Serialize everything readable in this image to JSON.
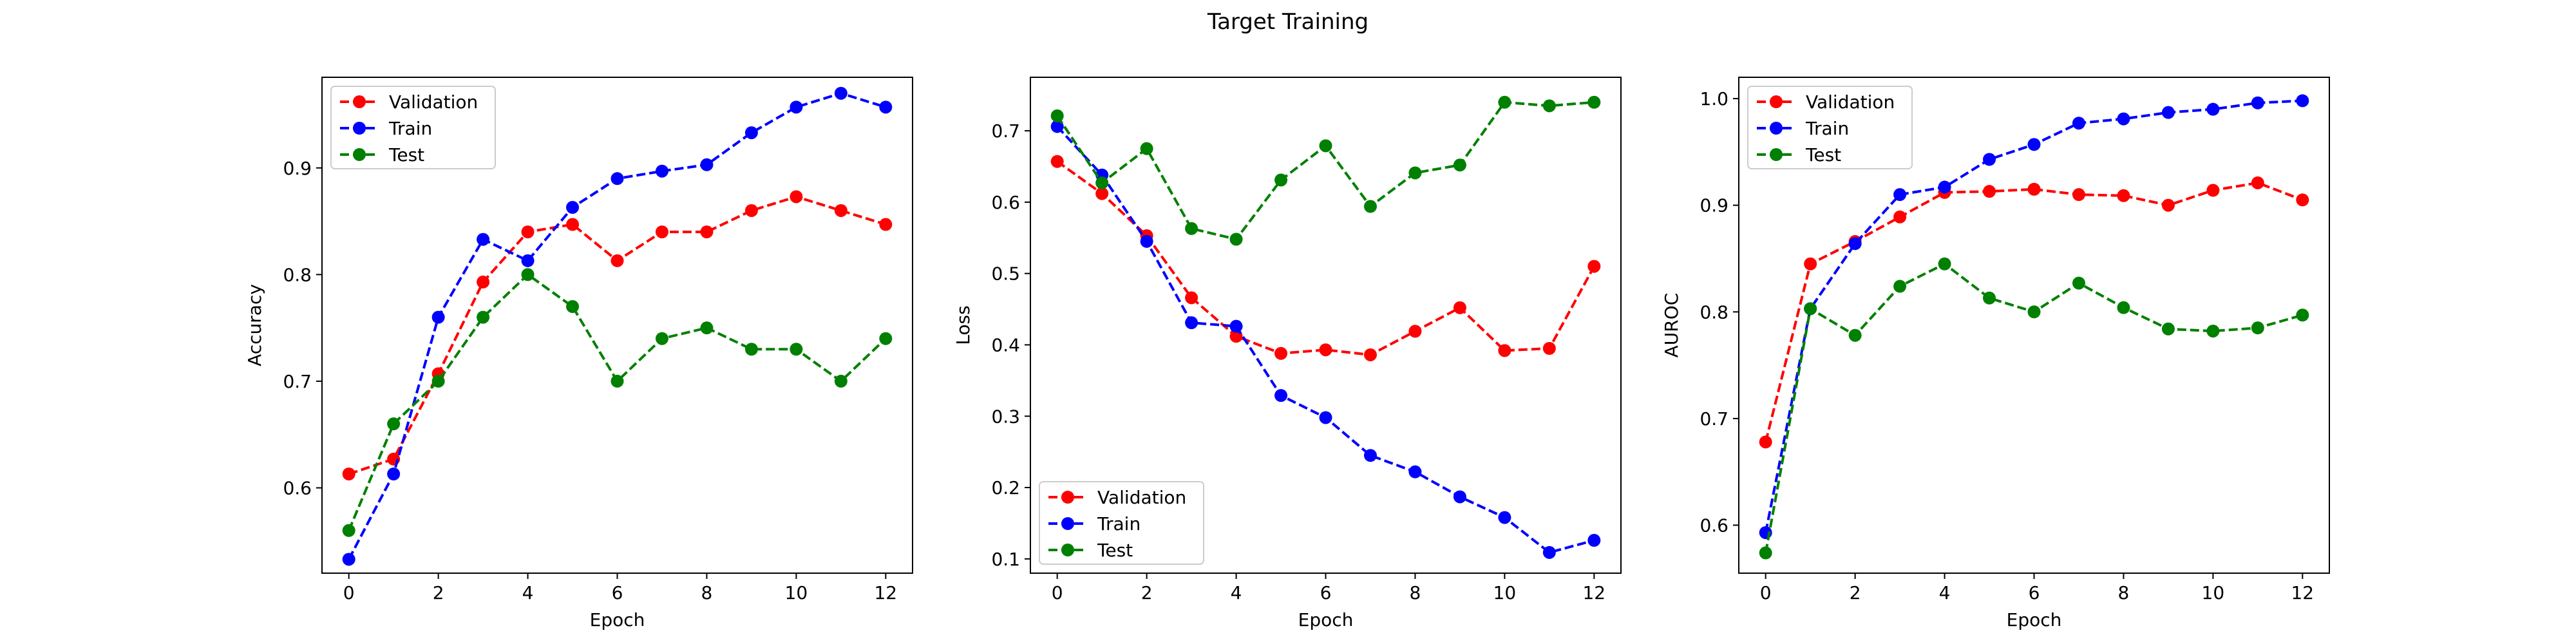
{
  "figure": {
    "title": "Target Training"
  },
  "chart_data": [
    {
      "type": "line",
      "xlabel": "Epoch",
      "ylabel": "Accuracy",
      "xlim": [
        -0.6,
        12.6
      ],
      "ylim": [
        0.52,
        0.985
      ],
      "xticks": [
        0,
        2,
        4,
        6,
        8,
        10,
        12
      ],
      "yticks": [
        0.6,
        0.7,
        0.8,
        0.9
      ],
      "grid": false,
      "legend": "top-left",
      "x": [
        0,
        1,
        2,
        3,
        4,
        5,
        6,
        7,
        8,
        9,
        10,
        11,
        12
      ],
      "series": [
        {
          "name": "Validation",
          "color": "#ff0000",
          "values": [
            0.613,
            0.627,
            0.707,
            0.793,
            0.84,
            0.847,
            0.813,
            0.84,
            0.84,
            0.86,
            0.873,
            0.86,
            0.847
          ]
        },
        {
          "name": "Train",
          "color": "#0000ff",
          "values": [
            0.533,
            0.613,
            0.76,
            0.833,
            0.813,
            0.863,
            0.89,
            0.897,
            0.903,
            0.933,
            0.957,
            0.97,
            0.957
          ]
        },
        {
          "name": "Test",
          "color": "#008000",
          "values": [
            0.56,
            0.66,
            0.7,
            0.76,
            0.8,
            0.77,
            0.7,
            0.74,
            0.75,
            0.73,
            0.73,
            0.7,
            0.74
          ]
        }
      ]
    },
    {
      "type": "line",
      "xlabel": "Epoch",
      "ylabel": "Loss",
      "xlim": [
        -0.6,
        12.6
      ],
      "ylim": [
        0.08,
        0.775
      ],
      "xticks": [
        0,
        2,
        4,
        6,
        8,
        10,
        12
      ],
      "yticks": [
        0.1,
        0.2,
        0.3,
        0.4,
        0.5,
        0.6,
        0.7
      ],
      "grid": false,
      "legend": "bottom-left",
      "x": [
        0,
        1,
        2,
        3,
        4,
        5,
        6,
        7,
        8,
        9,
        10,
        11,
        12
      ],
      "series": [
        {
          "name": "Validation",
          "color": "#ff0000",
          "values": [
            0.657,
            0.612,
            0.553,
            0.466,
            0.412,
            0.388,
            0.393,
            0.386,
            0.419,
            0.452,
            0.392,
            0.395,
            0.51
          ]
        },
        {
          "name": "Train",
          "color": "#0000ff",
          "values": [
            0.706,
            0.638,
            0.545,
            0.431,
            0.426,
            0.329,
            0.298,
            0.245,
            0.222,
            0.187,
            0.158,
            0.109,
            0.126
          ]
        },
        {
          "name": "Test",
          "color": "#008000",
          "values": [
            0.721,
            0.627,
            0.675,
            0.563,
            0.548,
            0.631,
            0.679,
            0.594,
            0.641,
            0.652,
            0.74,
            0.735,
            0.74
          ]
        }
      ]
    },
    {
      "type": "line",
      "xlabel": "Epoch",
      "ylabel": "AUROC",
      "xlim": [
        -0.6,
        12.6
      ],
      "ylim": [
        0.555,
        1.02
      ],
      "xticks": [
        0,
        2,
        4,
        6,
        8,
        10,
        12
      ],
      "yticks": [
        0.6,
        0.7,
        0.8,
        0.9,
        1.0
      ],
      "ytick_labels": [
        "0.6",
        "0.7",
        "0.8",
        "0.9",
        "1.0"
      ],
      "grid": false,
      "legend": "top-left",
      "x": [
        0,
        1,
        2,
        3,
        4,
        5,
        6,
        7,
        8,
        9,
        10,
        11,
        12
      ],
      "series": [
        {
          "name": "Validation",
          "color": "#ff0000",
          "values": [
            0.678,
            0.845,
            0.866,
            0.889,
            0.912,
            0.913,
            0.915,
            0.91,
            0.909,
            0.9,
            0.914,
            0.921,
            0.905
          ]
        },
        {
          "name": "Train",
          "color": "#0000ff",
          "values": [
            0.593,
            0.803,
            0.864,
            0.91,
            0.917,
            0.943,
            0.957,
            0.977,
            0.981,
            0.987,
            0.99,
            0.996,
            0.998
          ]
        },
        {
          "name": "Test",
          "color": "#008000",
          "values": [
            0.574,
            0.803,
            0.778,
            0.824,
            0.845,
            0.813,
            0.8,
            0.827,
            0.804,
            0.784,
            0.782,
            0.785,
            0.797
          ]
        }
      ]
    }
  ]
}
